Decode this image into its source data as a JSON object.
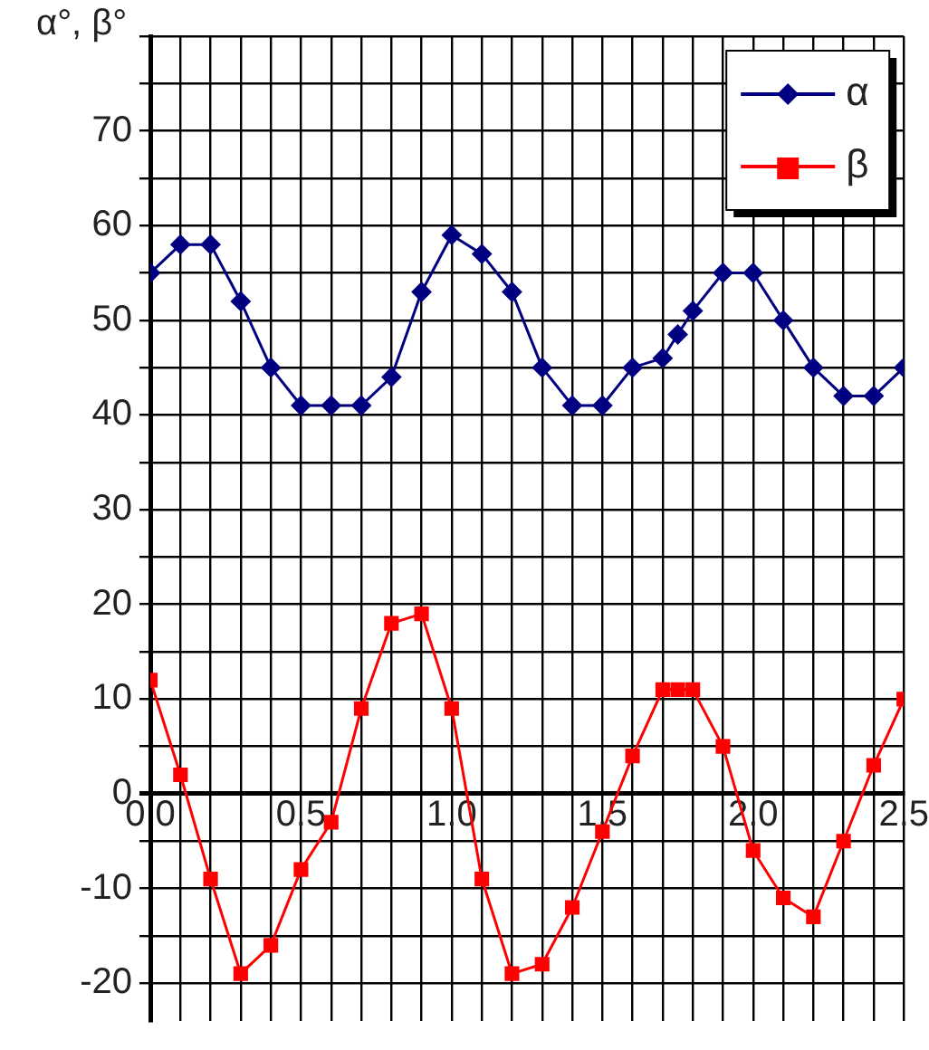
{
  "chart_data": {
    "type": "line",
    "ylabel": "α°, β°",
    "series": [
      {
        "name": "α",
        "color": "#000080",
        "marker": "diamond",
        "x": [
          0,
          0.1,
          0.2,
          0.3,
          0.4,
          0.5,
          0.6,
          0.7,
          0.8,
          0.9,
          1.0,
          1.1,
          1.2,
          1.3,
          1.4,
          1.5,
          1.6,
          1.7,
          1.75,
          1.8,
          1.9,
          2.0,
          2.1,
          2.2,
          2.3,
          2.4,
          2.5
        ],
        "values": [
          55,
          58,
          58,
          52,
          45,
          41,
          41,
          41,
          44,
          53,
          59,
          57,
          53,
          45,
          41,
          41,
          45,
          46,
          48.5,
          51,
          55,
          55,
          50,
          45,
          42,
          42,
          45
        ]
      },
      {
        "name": "β",
        "color": "#ff0000",
        "marker": "square",
        "x": [
          0,
          0.1,
          0.2,
          0.3,
          0.4,
          0.5,
          0.6,
          0.7,
          0.8,
          0.9,
          1.0,
          1.1,
          1.2,
          1.3,
          1.4,
          1.5,
          1.6,
          1.7,
          1.75,
          1.8,
          1.9,
          2.0,
          2.1,
          2.2,
          2.3,
          2.4,
          2.5
        ],
        "values": [
          12,
          2,
          -9,
          -19,
          -16,
          -8,
          -3,
          9,
          18,
          19,
          9,
          -9,
          -19,
          -18,
          -12,
          -4,
          4,
          11,
          11,
          11,
          5,
          -6,
          -11,
          -13,
          -5,
          3,
          10
        ]
      }
    ],
    "xlim": [
      0,
      2.5
    ],
    "xticks": [
      {
        "value": 0,
        "label": "0.0"
      },
      {
        "value": 0.1,
        "label": null
      },
      {
        "value": 0.2,
        "label": null
      },
      {
        "value": 0.3,
        "label": null
      },
      {
        "value": 0.4,
        "label": null
      },
      {
        "value": 0.5,
        "label": "0.5"
      },
      {
        "value": 0.6,
        "label": null
      },
      {
        "value": 0.7,
        "label": null
      },
      {
        "value": 0.8,
        "label": null
      },
      {
        "value": 0.9,
        "label": null
      },
      {
        "value": 1.0,
        "label": "1.0"
      },
      {
        "value": 1.1,
        "label": null
      },
      {
        "value": 1.2,
        "label": null
      },
      {
        "value": 1.3,
        "label": null
      },
      {
        "value": 1.4,
        "label": null
      },
      {
        "value": 1.5,
        "label": "1.5"
      },
      {
        "value": 1.6,
        "label": null
      },
      {
        "value": 1.7,
        "label": null
      },
      {
        "value": 1.8,
        "label": null
      },
      {
        "value": 1.9,
        "label": null
      },
      {
        "value": 2.0,
        "label": "2.0"
      },
      {
        "value": 2.1,
        "label": null
      },
      {
        "value": 2.2,
        "label": null
      },
      {
        "value": 2.3,
        "label": null
      },
      {
        "value": 2.4,
        "label": null
      },
      {
        "value": 2.5,
        "label": "2.5"
      }
    ],
    "ylim": [
      -24,
      80
    ],
    "yticks": [
      -20,
      {
        "value": -15,
        "label": null
      },
      -10,
      {
        "value": -5,
        "label": null
      },
      0,
      {
        "value": 5,
        "label": null
      },
      10,
      {
        "value": 15,
        "label": null
      },
      20,
      {
        "value": 25,
        "label": null
      },
      30,
      {
        "value": 35,
        "label": null
      },
      40,
      {
        "value": 45,
        "label": null
      },
      50,
      {
        "value": 55,
        "label": null
      },
      60,
      {
        "value": 65,
        "label": null
      },
      70,
      {
        "value": 75,
        "label": null
      },
      {
        "value": 80,
        "label": null
      }
    ],
    "grid": true,
    "legend": "top right",
    "line_style": "solid"
  }
}
